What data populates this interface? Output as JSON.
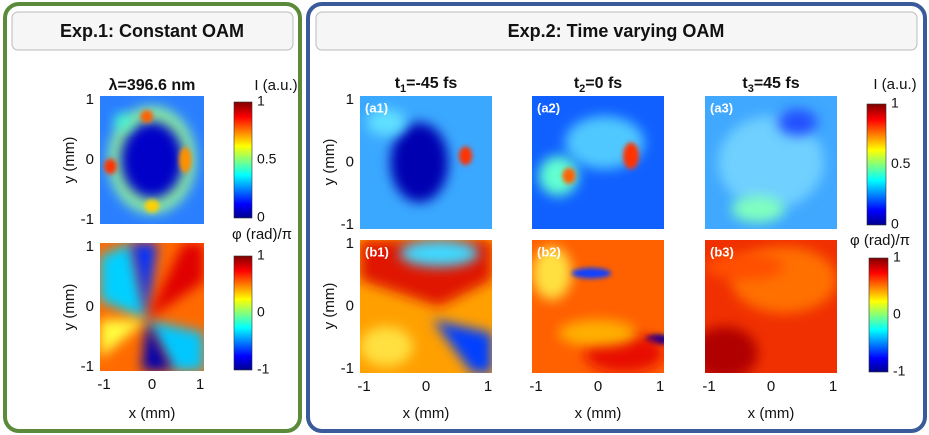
{
  "exp1": {
    "title": "Exp.1: Constant OAM",
    "wavelength": "λ=396.6 nm",
    "intensity_label": "I (a.u.)",
    "phase_label": "φ (rad)/π",
    "y_label": "y (mm)",
    "x_label": "x (mm)",
    "y_ticks": [
      1,
      0,
      -1
    ],
    "x_ticks": [
      -1,
      0,
      1
    ],
    "intensity_ticks": [
      1,
      0.5,
      0
    ],
    "phase_ticks": [
      1,
      0,
      -1
    ]
  },
  "exp2": {
    "title": "Exp.2: Time varying OAM",
    "times": [
      {
        "symbol": "t",
        "index": "1",
        "value": "=-45 fs"
      },
      {
        "symbol": "t",
        "index": "2",
        "value": "=0 fs"
      },
      {
        "symbol": "t",
        "index": "3",
        "value": "=45 fs"
      }
    ],
    "top_labels": [
      "(a1)",
      "(a2)",
      "(a3)"
    ],
    "bottom_labels": [
      "(b1)",
      "(b2)",
      "(b3)"
    ],
    "intensity_label": "I (a.u.)",
    "phase_label": "φ (rad)/π",
    "y_label": "y (mm)",
    "x_label": "x (mm)",
    "y_ticks": [
      1,
      0,
      -1
    ],
    "x_ticks": [
      -1,
      0,
      1
    ],
    "intensity_ticks": [
      1,
      0.5,
      0
    ],
    "phase_ticks": [
      1,
      0,
      -1
    ]
  }
}
